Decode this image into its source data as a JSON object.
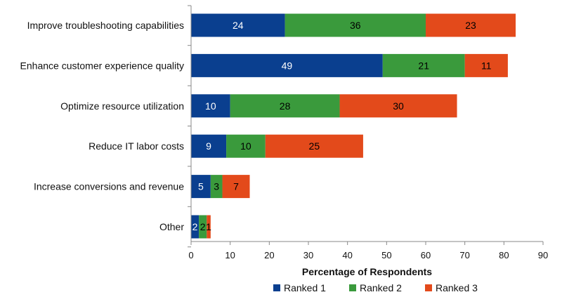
{
  "chart_data": {
    "type": "bar",
    "orientation": "horizontal",
    "stacked": true,
    "categories": [
      "Improve troubleshooting capabilities",
      "Enhance customer experience quality",
      "Optimize resource utilization",
      "Reduce IT labor costs",
      "Increase conversions and revenue",
      "Other"
    ],
    "series": [
      {
        "name": "Ranked 1",
        "color": "#0a3f8f",
        "label_color": "#ffffff",
        "values": [
          24,
          49,
          10,
          9,
          5,
          2
        ]
      },
      {
        "name": "Ranked 2",
        "color": "#3a9a3c",
        "label_color": "#000000",
        "values": [
          36,
          21,
          28,
          10,
          3,
          2
        ]
      },
      {
        "name": "Ranked 3",
        "color": "#e34a1b",
        "label_color": "#000000",
        "values": [
          23,
          11,
          30,
          25,
          7,
          1
        ]
      }
    ],
    "xlabel": "Percentage of Respondents",
    "ylabel": "",
    "xlim": [
      0,
      90
    ],
    "xticks": [
      0,
      10,
      20,
      30,
      40,
      50,
      60,
      70,
      80,
      90
    ],
    "legend_position": "bottom",
    "grid": false
  }
}
